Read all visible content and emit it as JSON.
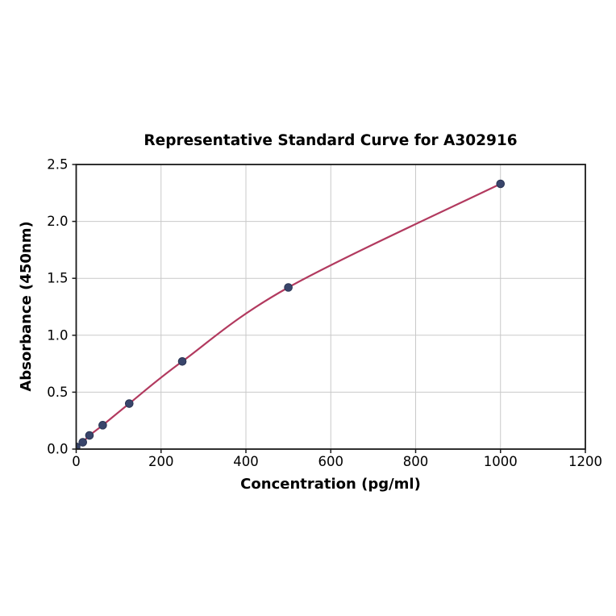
{
  "chart_data": {
    "type": "line",
    "title": "Representative Standard Curve for A302916",
    "xlabel": "Concentration (pg/ml)",
    "ylabel": "Absorbance (450nm)",
    "x": [
      0,
      15.6,
      31.25,
      62.5,
      125,
      250,
      500,
      1000
    ],
    "y": [
      0.02,
      0.06,
      0.12,
      0.21,
      0.4,
      0.77,
      1.42,
      2.33
    ],
    "xlim": [
      0,
      1200
    ],
    "ylim": [
      0,
      2.5
    ],
    "x_ticks": [
      0,
      200,
      400,
      600,
      800,
      1000,
      1200
    ],
    "x_tick_labels": [
      "0",
      "200",
      "400",
      "600",
      "800",
      "1000",
      "1200"
    ],
    "y_ticks": [
      0,
      0.5,
      1.0,
      1.5,
      2.0,
      2.5
    ],
    "y_tick_labels": [
      "0.0",
      "0.5",
      "1.0",
      "1.5",
      "2.0",
      "2.5"
    ],
    "grid": true,
    "legend": "none",
    "colors": {
      "line": "#b23a5f",
      "marker_fill": "#39456b",
      "marker_edge": "#2a3553",
      "grid": "#c9c9c9",
      "spine": "#1a1a1a",
      "tick": "#1a1a1a",
      "background": "#ffffff"
    }
  }
}
